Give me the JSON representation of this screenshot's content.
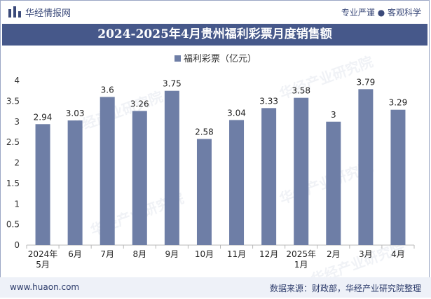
{
  "header": {
    "brand": "华经情报网",
    "tagline": "专业严谨 ● 客观科学",
    "brand_icon": "bar-logo-icon"
  },
  "chart_data": {
    "type": "bar",
    "title": "2024-2025年4月贵州福利彩票月度销售额",
    "legend": [
      "福利彩票（亿元）"
    ],
    "categories": [
      "2024年\n5月",
      "6月",
      "7月",
      "8月",
      "9月",
      "10月",
      "11月",
      "12月",
      "2025年\n1月",
      "2月",
      "3月",
      "4月"
    ],
    "series": [
      {
        "name": "福利彩票（亿元）",
        "values": [
          2.94,
          3.03,
          3.6,
          3.26,
          3.75,
          2.58,
          3.04,
          3.33,
          3.58,
          3,
          3.79,
          3.29
        ]
      }
    ],
    "value_labels": [
      "2.94",
      "3.03",
      "3.6",
      "3.26",
      "3.75",
      "2.58",
      "3.04",
      "3.33",
      "3.58",
      "3",
      "3.79",
      "3.29"
    ],
    "ylim": [
      0,
      4
    ],
    "yticks": [
      "0",
      "0.5",
      "1",
      "1.5",
      "2",
      "2.5",
      "3",
      "3.5",
      "4"
    ],
    "grid": false,
    "legend_position": "top-center",
    "bar_color": "#6e7ea6"
  },
  "watermark": "华经产业研究院",
  "footer": {
    "website": "www.huaon.com",
    "source": "数据来源：财政部，华经产业研究院整理"
  }
}
